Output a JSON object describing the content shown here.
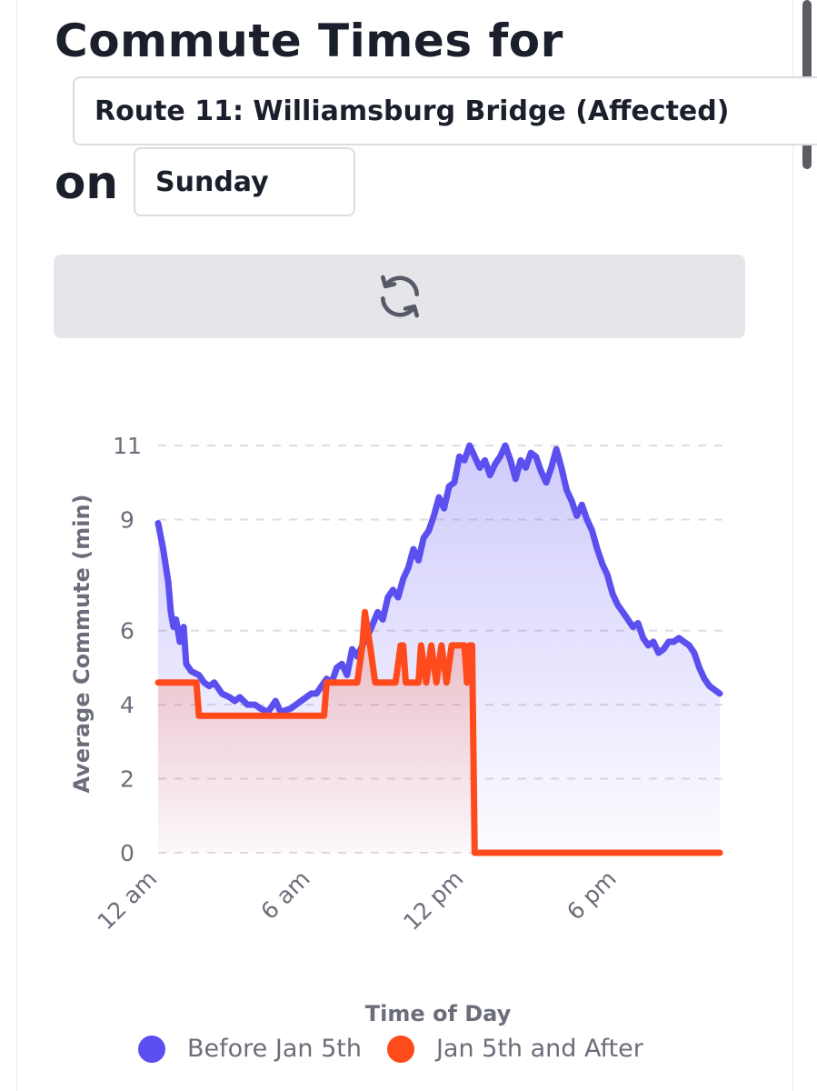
{
  "header": {
    "title": "Commute Times for",
    "on_label": "on"
  },
  "route_select": {
    "value": "Route 11: Williamsburg Bridge (Affected)"
  },
  "day_select": {
    "value": "Sunday"
  },
  "refresh_button": {
    "icon": "refresh-icon"
  },
  "colors": {
    "before": "#5b4ff0",
    "after": "#ff4a1c",
    "grid": "#dcdce2",
    "axis_text": "#6b6e7a"
  },
  "chart_data": {
    "type": "line",
    "xlabel": "Time of Day",
    "ylabel": "Average Commute (min)",
    "x_tick_labels": [
      "12 am",
      "6 am",
      "12 pm",
      "6 pm"
    ],
    "x_tick_hours": [
      0,
      6,
      12,
      18
    ],
    "x_range_hours": [
      0,
      22
    ],
    "y_ticks": [
      0,
      2,
      4,
      6,
      9,
      11
    ],
    "ylim": [
      0,
      11
    ],
    "grid": "horizontal dashed",
    "legend_position": "bottom",
    "series": [
      {
        "name": "Before Jan 5th",
        "points": [
          [
            0.0,
            8.9
          ],
          [
            0.2,
            8.2
          ],
          [
            0.4,
            7.3
          ],
          [
            0.5,
            6.5
          ],
          [
            0.6,
            6.1
          ],
          [
            0.7,
            6.3
          ],
          [
            0.85,
            5.7
          ],
          [
            1.0,
            6.1
          ],
          [
            1.1,
            5.1
          ],
          [
            1.3,
            4.9
          ],
          [
            1.6,
            4.8
          ],
          [
            1.8,
            4.6
          ],
          [
            2.0,
            4.5
          ],
          [
            2.2,
            4.6
          ],
          [
            2.5,
            4.3
          ],
          [
            2.8,
            4.2
          ],
          [
            3.0,
            4.1
          ],
          [
            3.2,
            4.2
          ],
          [
            3.5,
            4.0
          ],
          [
            3.8,
            4.0
          ],
          [
            4.0,
            3.9
          ],
          [
            4.3,
            3.8
          ],
          [
            4.6,
            4.1
          ],
          [
            4.8,
            3.8
          ],
          [
            5.2,
            3.9
          ],
          [
            5.6,
            4.1
          ],
          [
            6.0,
            4.3
          ],
          [
            6.2,
            4.3
          ],
          [
            6.4,
            4.5
          ],
          [
            6.6,
            4.7
          ],
          [
            6.8,
            4.6
          ],
          [
            7.0,
            5.0
          ],
          [
            7.2,
            5.1
          ],
          [
            7.4,
            4.8
          ],
          [
            7.6,
            5.5
          ],
          [
            7.8,
            5.3
          ],
          [
            8.0,
            5.6
          ],
          [
            8.3,
            6.0
          ],
          [
            8.6,
            6.5
          ],
          [
            8.8,
            6.3
          ],
          [
            9.0,
            6.9
          ],
          [
            9.2,
            7.1
          ],
          [
            9.4,
            6.9
          ],
          [
            9.6,
            7.4
          ],
          [
            9.8,
            7.7
          ],
          [
            10.0,
            8.2
          ],
          [
            10.2,
            7.9
          ],
          [
            10.4,
            8.5
          ],
          [
            10.6,
            8.7
          ],
          [
            10.8,
            9.1
          ],
          [
            11.0,
            9.6
          ],
          [
            11.2,
            9.3
          ],
          [
            11.4,
            9.9
          ],
          [
            11.6,
            10.0
          ],
          [
            11.8,
            10.7
          ],
          [
            12.0,
            10.6
          ],
          [
            12.2,
            11.0
          ],
          [
            12.4,
            10.7
          ],
          [
            12.6,
            10.4
          ],
          [
            12.8,
            10.6
          ],
          [
            13.0,
            10.2
          ],
          [
            13.2,
            10.5
          ],
          [
            13.4,
            10.7
          ],
          [
            13.6,
            11.0
          ],
          [
            13.8,
            10.6
          ],
          [
            14.0,
            10.1
          ],
          [
            14.2,
            10.6
          ],
          [
            14.4,
            10.4
          ],
          [
            14.6,
            10.8
          ],
          [
            14.8,
            10.7
          ],
          [
            15.0,
            10.3
          ],
          [
            15.2,
            10.0
          ],
          [
            15.4,
            10.4
          ],
          [
            15.6,
            10.9
          ],
          [
            15.8,
            10.4
          ],
          [
            16.0,
            9.8
          ],
          [
            16.2,
            9.5
          ],
          [
            16.4,
            9.1
          ],
          [
            16.6,
            9.4
          ],
          [
            16.8,
            9.0
          ],
          [
            17.0,
            8.7
          ],
          [
            17.2,
            8.2
          ],
          [
            17.4,
            7.8
          ],
          [
            17.6,
            7.5
          ],
          [
            17.8,
            7.0
          ],
          [
            18.0,
            6.7
          ],
          [
            18.2,
            6.5
          ],
          [
            18.4,
            6.3
          ],
          [
            18.6,
            6.1
          ],
          [
            18.8,
            6.2
          ],
          [
            19.0,
            5.8
          ],
          [
            19.2,
            5.6
          ],
          [
            19.4,
            5.7
          ],
          [
            19.6,
            5.4
          ],
          [
            19.8,
            5.5
          ],
          [
            20.0,
            5.7
          ],
          [
            20.2,
            5.7
          ],
          [
            20.4,
            5.8
          ],
          [
            20.6,
            5.7
          ],
          [
            20.8,
            5.6
          ],
          [
            21.0,
            5.4
          ],
          [
            21.2,
            5.0
          ],
          [
            21.4,
            4.7
          ],
          [
            21.6,
            4.5
          ],
          [
            22.0,
            4.3
          ]
        ]
      },
      {
        "name": "Jan 5th and After",
        "points": [
          [
            0.0,
            4.6
          ],
          [
            1.5,
            4.6
          ],
          [
            1.6,
            3.7
          ],
          [
            6.5,
            3.7
          ],
          [
            6.6,
            4.6
          ],
          [
            7.8,
            4.6
          ],
          [
            8.0,
            5.6
          ],
          [
            8.1,
            6.5
          ],
          [
            8.3,
            5.6
          ],
          [
            8.5,
            4.6
          ],
          [
            9.3,
            4.6
          ],
          [
            9.5,
            5.6
          ],
          [
            9.6,
            5.6
          ],
          [
            9.7,
            4.6
          ],
          [
            10.2,
            4.6
          ],
          [
            10.3,
            5.6
          ],
          [
            10.5,
            4.6
          ],
          [
            10.7,
            5.6
          ],
          [
            10.9,
            4.6
          ],
          [
            11.1,
            5.6
          ],
          [
            11.3,
            4.6
          ],
          [
            11.5,
            5.6
          ],
          [
            12.0,
            5.6
          ],
          [
            12.1,
            4.6
          ],
          [
            12.2,
            5.6
          ],
          [
            12.3,
            5.6
          ],
          [
            12.4,
            0.0
          ],
          [
            22.0,
            0.0
          ]
        ]
      }
    ]
  }
}
